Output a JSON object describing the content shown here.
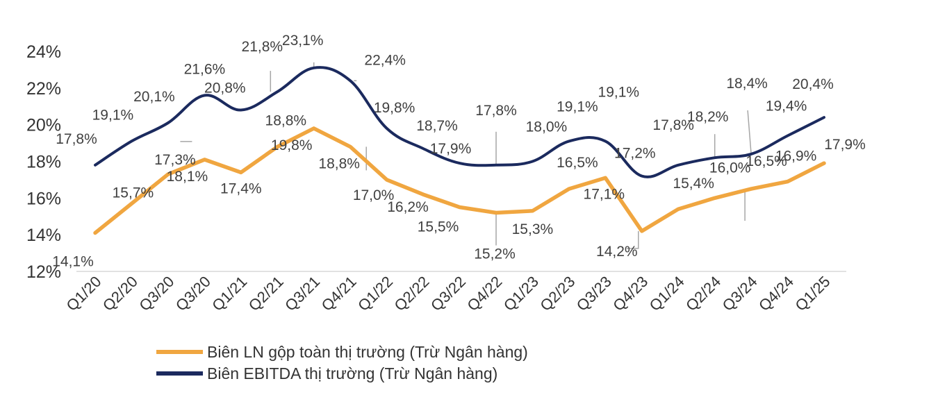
{
  "chart_data": {
    "type": "line",
    "title": "",
    "xlabel": "",
    "ylabel": "",
    "ylim": [
      12,
      24
    ],
    "y_ticks": [
      12,
      14,
      16,
      18,
      20,
      22,
      24
    ],
    "y_tick_labels": [
      "12%",
      "14%",
      "16%",
      "18%",
      "20%",
      "22%",
      "24%"
    ],
    "grid": false,
    "legend_position": "bottom",
    "categories": [
      "Q1/20",
      "Q2/20",
      "Q3/20",
      "Q3/20",
      "Q1/21",
      "Q2/21",
      "Q3/21",
      "Q4/21",
      "Q1/22",
      "Q2/22",
      "Q3/22",
      "Q4/22",
      "Q1/23",
      "Q2/23",
      "Q3/23",
      "Q4/23",
      "Q1/24",
      "Q2/24",
      "Q3/24",
      "Q4/24",
      "Q1/25"
    ],
    "series": [
      {
        "name": "Biên LN gộp toàn thị trường (Trừ Ngân hàng)",
        "color": "#F0A640",
        "values": [
          14.1,
          15.7,
          17.3,
          18.1,
          17.4,
          18.8,
          19.8,
          18.8,
          17.0,
          16.2,
          15.5,
          15.2,
          15.3,
          16.5,
          17.1,
          14.2,
          15.4,
          16.0,
          16.5,
          16.9,
          17.9
        ],
        "labels": [
          "14,1%",
          "15,7%",
          "17,3%",
          "18,1%",
          "17,4%",
          "18,8%",
          "19,8%",
          "18,8%",
          "17,0%",
          "16,2%",
          "15,5%",
          "15,2%",
          "15,3%",
          "16,5%",
          "17,1%",
          "14,2%",
          "15,4%",
          "16,0%",
          "16,5%",
          "16,9%",
          "17,9%"
        ]
      },
      {
        "name": "Biên EBITDA thị trường (Trừ Ngân hàng)",
        "color": "#1B2A5E",
        "values": [
          17.8,
          19.1,
          20.1,
          21.6,
          20.8,
          21.8,
          23.1,
          22.4,
          19.8,
          18.7,
          17.9,
          17.8,
          18.0,
          19.1,
          19.1,
          17.2,
          17.8,
          18.2,
          18.4,
          19.4,
          20.4
        ],
        "labels": [
          "17,8%",
          "19,1%",
          "20,1%",
          "21,6%",
          "20,8%",
          "21,8%",
          "23,1%",
          "22,4%",
          "19,8%",
          "18,7%",
          "17,9%",
          "17,8%",
          "18,0%",
          "19,1%",
          "19,1%",
          "17,2%",
          "17,8%",
          "18,2%",
          "18,4%",
          "19,4%",
          "20,4%"
        ]
      }
    ]
  }
}
